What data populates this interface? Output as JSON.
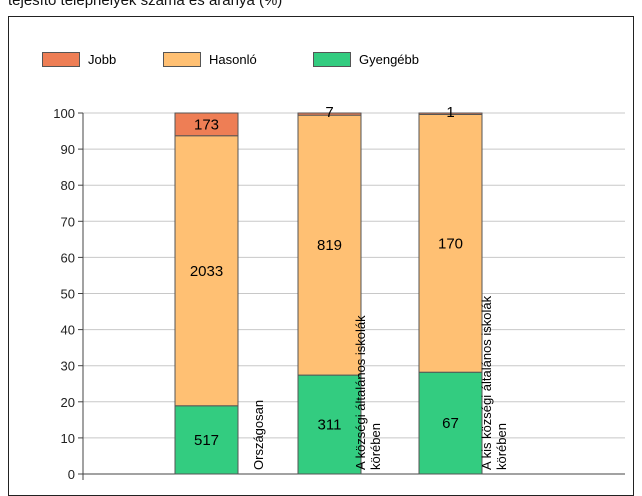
{
  "title": "tejesítő telephelyek száma és aránya (%)",
  "chart_data": {
    "type": "bar",
    "stacked": true,
    "ylim": [
      0,
      100
    ],
    "yticks": [
      0,
      10,
      20,
      30,
      40,
      50,
      60,
      70,
      80,
      90,
      100
    ],
    "categories": [
      [
        "Országosan"
      ],
      [
        "A községi általános iskolák",
        "körében"
      ],
      [
        "A kis községi általános iskolák",
        "körében"
      ]
    ],
    "series": [
      {
        "name": "Gyengébb",
        "color": "#33cc80",
        "values": [
          18.9,
          27.4,
          28.2
        ],
        "labels": [
          "517",
          "311",
          "67"
        ]
      },
      {
        "name": "Hasonló",
        "color": "#ffc073",
        "values": [
          74.8,
          72.0,
          71.4
        ],
        "labels": [
          "2033",
          "819",
          "170"
        ]
      },
      {
        "name": "Jobb",
        "color": "#ee7e55",
        "values": [
          6.3,
          0.6,
          0.4
        ],
        "labels": [
          "173",
          "7",
          "1"
        ]
      }
    ],
    "legend": {
      "position": "top-left",
      "entries": [
        "Jobb",
        "Hasonló",
        "Gyengébb"
      ]
    },
    "grid": true
  }
}
